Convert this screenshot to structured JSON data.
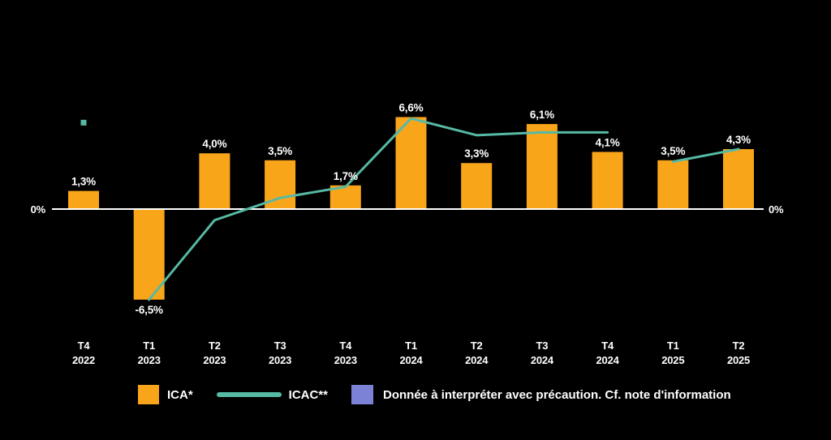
{
  "colors": {
    "background": "#000000",
    "bar": "#F9A51A",
    "line": "#56B9A4",
    "axis_line": "#FFFFFF",
    "text": "#FFFFFF",
    "zero_right": "#C2272B",
    "caution_swatch": "#7C83D7"
  },
  "axis": {
    "zero_label_left": "0%",
    "zero_label_right": "0%"
  },
  "legend": {
    "ica_label": "ICA*",
    "icac_label": "ICAC**",
    "caution_label": "Donnée à interpréter avec précaution. Cf. note d'information"
  },
  "chart_data": {
    "type": "combo-bar-line",
    "title": "",
    "xlabel": "",
    "ylabel": "",
    "ylim": [
      -8,
      8
    ],
    "grid": false,
    "legend_position": "bottom",
    "baseline": 0,
    "categories": [
      {
        "quarter": "T4",
        "year": "2022"
      },
      {
        "quarter": "T1",
        "year": "2023"
      },
      {
        "quarter": "T2",
        "year": "2023"
      },
      {
        "quarter": "T3",
        "year": "2023"
      },
      {
        "quarter": "T4",
        "year": "2023"
      },
      {
        "quarter": "T1",
        "year": "2024"
      },
      {
        "quarter": "T2",
        "year": "2024"
      },
      {
        "quarter": "T3",
        "year": "2024"
      },
      {
        "quarter": "T4",
        "year": "2024"
      },
      {
        "quarter": "T1",
        "year": "2025"
      },
      {
        "quarter": "T2",
        "year": "2025"
      }
    ],
    "series": [
      {
        "name": "ICA*",
        "type": "bar",
        "values": [
          1.3,
          -6.5,
          4.0,
          3.5,
          1.7,
          6.6,
          3.3,
          6.1,
          4.1,
          3.5,
          4.3
        ],
        "labels": [
          "1,3%",
          "-6,5%",
          "4,0%",
          "3,5%",
          "1,7%",
          "6,6%",
          "3,3%",
          "6,1%",
          "4,1%",
          "3,5%",
          "4,3%"
        ]
      },
      {
        "name": "ICAC**",
        "type": "line",
        "segments": [
          {
            "style": "dot",
            "points": [
              {
                "cat": 0,
                "value": 6.2
              }
            ]
          },
          {
            "style": "line",
            "points": [
              {
                "cat": 1,
                "value": -6.5
              },
              {
                "cat": 2,
                "value": -0.8
              },
              {
                "cat": 3,
                "value": 0.8
              },
              {
                "cat": 4,
                "value": 1.6
              },
              {
                "cat": 5,
                "value": 6.5
              },
              {
                "cat": 6,
                "value": 5.3
              },
              {
                "cat": 7,
                "value": 5.5
              },
              {
                "cat": 8,
                "value": 5.5
              }
            ]
          },
          {
            "style": "line",
            "points": [
              {
                "cat": 9,
                "value": 3.4
              },
              {
                "cat": 10,
                "value": 4.3
              }
            ]
          }
        ]
      }
    ]
  }
}
